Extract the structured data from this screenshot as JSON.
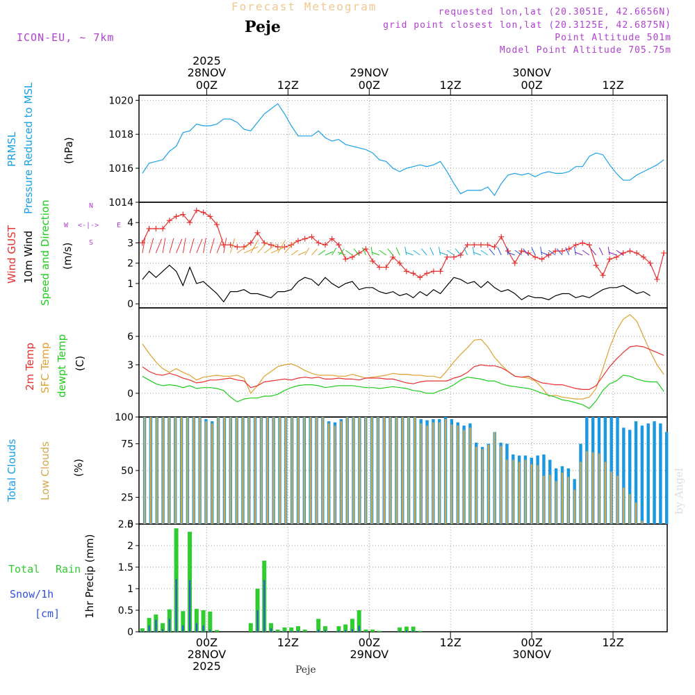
{
  "header": {
    "title": "Forecast Meteogram",
    "station": "Peje",
    "model": "ICON-EU, ~ 7km",
    "requested": "requested lon,lat (20.3051E, 42.6656N)",
    "grid": "grid point closest lon,lat (20.3125E, 42.6875N)",
    "point_alt": "Point Altitude 501m",
    "model_alt": "Model Point Altitude 705.75m"
  },
  "footer": {
    "station": "Peje",
    "watermark": "by Angel"
  },
  "time_axis": {
    "top_year": "2025",
    "top_days": [
      {
        "hour": 0,
        "date": "28NOV",
        "label": "00Z"
      },
      {
        "hour": 24,
        "date": "29NOV",
        "label": "00Z"
      },
      {
        "hour": 48,
        "date": "30NOV",
        "label": "00Z"
      }
    ],
    "top_12z": [
      {
        "hour": 12,
        "label": "12Z"
      },
      {
        "hour": 36,
        "label": "12Z"
      },
      {
        "hour": 60,
        "label": "12Z"
      }
    ],
    "bottom_labels": [
      {
        "hour": 0,
        "lines": [
          "00Z",
          "28NOV",
          "2025"
        ]
      },
      {
        "hour": 12,
        "lines": [
          "12Z"
        ]
      },
      {
        "hour": 24,
        "lines": [
          "00Z",
          "29NOV"
        ]
      },
      {
        "hour": 36,
        "lines": [
          "12Z"
        ]
      },
      {
        "hour": 48,
        "lines": [
          "00Z",
          "30NOV"
        ]
      },
      {
        "hour": 60,
        "lines": [
          "12Z"
        ]
      }
    ]
  },
  "panel_labels": {
    "pressure": [
      "PRMSL",
      "Pressure Reduced to MSL"
    ],
    "pressure_unit": "(hPa)",
    "wind": [
      "Wind GUST",
      "10m Wind",
      "Speed and Direction"
    ],
    "wind_unit": "(m/s)",
    "compass": {
      "n": "N",
      "s": "S",
      "w": "W",
      "e": "E",
      "arrow": "<-|->"
    },
    "temp": [
      "2m Temp",
      "SFC Temp",
      "dewpt Temp"
    ],
    "temp_unit": "(C)",
    "clouds": [
      "Total Clouds",
      "Low Clouds"
    ],
    "clouds_unit": "(%)",
    "precip": {
      "total": "Total",
      "rain": "Rain",
      "snow": "Snow/1h",
      "cm": "[cm]",
      "axis": "1hr Precip (mm)"
    }
  },
  "colors": {
    "pressure": "#1aa0e8",
    "gust": "#e83030",
    "wind": "#000000",
    "t2m": "#e83030",
    "sfc": "#e0a030",
    "dew": "#20cc20",
    "total_clouds": "#1a98e0",
    "low_clouds": "#d4a850",
    "rain": "#30cc30",
    "snow": "#3050e0",
    "grid": "#999999"
  },
  "chart_data": [
    {
      "type": "line",
      "title": "PRMSL Pressure Reduced to MSL",
      "ylabel": "(hPa)",
      "x_start_hour": -9.5,
      "x_step_hours": 1,
      "ylim": [
        1014,
        1020.3
      ],
      "yticks": [
        1014,
        1016,
        1018,
        1020
      ],
      "series": [
        {
          "name": "PRMSL",
          "values": [
            1015.7,
            1016.3,
            1016.4,
            1016.5,
            1017.0,
            1017.3,
            1018.1,
            1018.2,
            1018.6,
            1018.5,
            1018.5,
            1018.6,
            1018.9,
            1018.9,
            1018.7,
            1018.3,
            1018.2,
            1018.7,
            1019.2,
            1019.5,
            1019.8,
            1019.2,
            1018.5,
            1017.9,
            1017.9,
            1017.9,
            1018.2,
            1017.8,
            1017.6,
            1017.7,
            1017.4,
            1017.3,
            1017.2,
            1017.1,
            1016.9,
            1016.5,
            1016.4,
            1016.0,
            1015.8,
            1016.0,
            1016.1,
            1016.2,
            1016.1,
            1016.2,
            1016.4,
            1015.8,
            1015.1,
            1014.5,
            1014.7,
            1014.7,
            1014.7,
            1014.9,
            1014.4,
            1015.1,
            1015.6,
            1015.7,
            1015.6,
            1015.7,
            1015.5,
            1015.7,
            1015.8,
            1015.7,
            1015.7,
            1015.8,
            1016.1,
            1016.1,
            1016.7,
            1016.9,
            1016.8,
            1016.2,
            1015.7,
            1015.3,
            1015.3,
            1015.6,
            1015.8,
            1016.0,
            1016.2,
            1016.5
          ]
        }
      ]
    },
    {
      "type": "line",
      "title": "Wind GUST / 10m Wind Speed and Direction",
      "ylabel": "(m/s)",
      "x_start_hour": -9.5,
      "x_step_hours": 1,
      "ylim": [
        -0.2,
        5.0
      ],
      "yticks": [
        0,
        1,
        2,
        3,
        4
      ],
      "series": [
        {
          "name": "Wind GUST",
          "values": [
            3.0,
            3.7,
            3.7,
            3.7,
            4.1,
            4.3,
            4.4,
            4.0,
            4.6,
            4.5,
            4.3,
            3.9,
            2.9,
            2.9,
            2.8,
            2.8,
            3.0,
            3.5,
            3.0,
            2.9,
            2.8,
            2.8,
            2.9,
            3.1,
            3.2,
            3.3,
            3.0,
            2.9,
            3.2,
            2.9,
            2.2,
            2.3,
            2.5,
            2.7,
            2.1,
            1.8,
            1.8,
            2.3,
            2.0,
            1.6,
            1.5,
            1.3,
            1.5,
            1.6,
            1.6,
            2.3,
            2.3,
            2.4,
            2.9,
            2.9,
            2.9,
            2.9,
            2.8,
            3.3,
            2.6,
            2.0,
            2.6,
            2.5,
            2.3,
            2.2,
            2.4,
            2.6,
            2.6,
            2.7,
            2.9,
            3.0,
            2.9,
            1.9,
            1.4,
            2.2,
            2.3,
            2.5,
            2.6,
            2.5,
            2.3,
            2.0,
            1.2,
            2.5
          ]
        },
        {
          "name": "10m Wind",
          "values": [
            1.2,
            1.6,
            1.3,
            1.6,
            1.9,
            1.6,
            0.9,
            1.8,
            1.0,
            1.1,
            0.8,
            0.5,
            0.1,
            0.6,
            0.6,
            0.7,
            0.5,
            0.5,
            0.4,
            0.3,
            0.6,
            0.6,
            0.7,
            1.1,
            1.3,
            1.2,
            0.9,
            1.3,
            1.0,
            0.8,
            1.0,
            1.1,
            0.7,
            0.8,
            0.8,
            0.6,
            0.5,
            0.6,
            0.4,
            0.5,
            0.3,
            0.6,
            0.4,
            0.7,
            0.5,
            0.9,
            1.3,
            1.2,
            1.0,
            1.1,
            0.8,
            1.1,
            0.8,
            0.6,
            0.7,
            0.5,
            0.2,
            0.4,
            0.3,
            0.3,
            0.2,
            0.4,
            0.5,
            0.5,
            0.3,
            0.4,
            0.3,
            0.5,
            0.7,
            0.8,
            0.8,
            0.9,
            0.7,
            0.5,
            0.6,
            0.4
          ]
        }
      ]
    },
    {
      "type": "line",
      "title": "2m Temp / SFC Temp / dewpt Temp",
      "ylabel": "(C)",
      "x_start_hour": -9.5,
      "x_step_hours": 1,
      "ylim": [
        -2.5,
        9.0
      ],
      "yticks": [
        0,
        3,
        6
      ],
      "series": [
        {
          "name": "2m Temp",
          "values": [
            2.8,
            2.3,
            2.0,
            1.9,
            2.1,
            1.9,
            1.6,
            1.4,
            1.1,
            1.2,
            1.4,
            1.4,
            1.5,
            1.6,
            1.4,
            1.3,
            0.6,
            0.8,
            1.2,
            1.3,
            1.4,
            1.5,
            1.4,
            1.6,
            1.7,
            1.6,
            1.7,
            1.5,
            1.5,
            1.6,
            1.5,
            1.5,
            1.4,
            1.6,
            1.6,
            1.6,
            1.5,
            1.5,
            1.3,
            1.1,
            1.0,
            1.2,
            1.3,
            1.3,
            1.3,
            1.3,
            1.6,
            1.8,
            2.2,
            2.8,
            3.0,
            2.9,
            2.9,
            2.7,
            2.3,
            1.8,
            1.7,
            1.8,
            1.4,
            1.1,
            1.0,
            0.9,
            0.9,
            0.7,
            0.5,
            0.4,
            0.4,
            0.8,
            1.8,
            2.8,
            3.6,
            4.3,
            4.9,
            5.0,
            4.9,
            4.6,
            4.3,
            4.0
          ]
        },
        {
          "name": "SFC Temp",
          "values": [
            5.2,
            4.2,
            3.3,
            2.6,
            2.2,
            2.6,
            2.2,
            1.9,
            1.4,
            1.7,
            1.8,
            1.9,
            1.8,
            1.8,
            1.9,
            1.6,
            0.0,
            0.8,
            1.8,
            2.3,
            2.8,
            3.0,
            3.1,
            2.8,
            2.4,
            2.1,
            1.9,
            1.9,
            1.9,
            1.8,
            1.8,
            2.0,
            1.8,
            1.6,
            1.7,
            1.8,
            1.9,
            2.1,
            2.0,
            2.0,
            1.9,
            1.9,
            1.8,
            1.8,
            1.6,
            2.4,
            3.3,
            4.1,
            4.8,
            5.6,
            5.7,
            4.9,
            3.8,
            3.0,
            2.3,
            1.8,
            1.7,
            1.6,
            1.3,
            0.6,
            -0.3,
            -0.2,
            -0.4,
            -0.5,
            -0.6,
            -0.6,
            -0.4,
            0.5,
            2.6,
            4.8,
            6.6,
            7.8,
            8.3,
            7.6,
            6.0,
            4.4,
            3.0,
            2.0
          ]
        },
        {
          "name": "dewpt Temp",
          "values": [
            1.8,
            1.4,
            1.0,
            0.8,
            0.9,
            0.8,
            0.6,
            0.8,
            0.5,
            0.6,
            0.6,
            0.5,
            0.3,
            -0.4,
            -0.9,
            -0.6,
            -0.5,
            -0.5,
            -0.3,
            -0.3,
            -0.1,
            0.3,
            0.6,
            0.8,
            0.9,
            0.9,
            0.8,
            0.6,
            0.7,
            0.8,
            0.8,
            0.8,
            0.7,
            0.6,
            0.6,
            0.5,
            0.6,
            0.7,
            0.6,
            0.5,
            0.3,
            0.2,
            0.0,
            0.0,
            0.3,
            0.5,
            0.9,
            1.4,
            1.7,
            1.6,
            1.5,
            1.3,
            1.3,
            1.0,
            0.8,
            0.7,
            0.6,
            0.5,
            0.3,
            0.0,
            -0.2,
            -0.4,
            -0.7,
            -0.8,
            -1.0,
            -1.2,
            -1.6,
            -0.8,
            0.3,
            1.0,
            1.3,
            1.9,
            1.8,
            1.5,
            1.3,
            1.2,
            1.2,
            0.2
          ]
        }
      ]
    },
    {
      "type": "bar",
      "title": "Total Clouds / Low Clouds",
      "ylabel": "(%)",
      "x_start_hour": -9.5,
      "x_step_hours": 1,
      "ylim": [
        0,
        100
      ],
      "yticks": [
        0,
        25,
        50,
        75,
        100
      ],
      "series": [
        {
          "name": "Total Clouds",
          "values": [
            100,
            100,
            100,
            100,
            100,
            100,
            100,
            100,
            100,
            100,
            98,
            96,
            100,
            100,
            100,
            100,
            100,
            100,
            100,
            100,
            100,
            100,
            100,
            100,
            100,
            100,
            100,
            100,
            100,
            100,
            96,
            95,
            98,
            100,
            100,
            100,
            100,
            100,
            100,
            100,
            100,
            100,
            100,
            100,
            100,
            98,
            97,
            98,
            98,
            100,
            98,
            95,
            92,
            94,
            76,
            72,
            75,
            86,
            76,
            75,
            65,
            64,
            64,
            62,
            64,
            65,
            60,
            52,
            54,
            52,
            42,
            75,
            100,
            100,
            100,
            100,
            100,
            100,
            90,
            88,
            96,
            92,
            94,
            96,
            94,
            86
          ]
        },
        {
          "name": "Low Clouds",
          "values": [
            100,
            100,
            100,
            100,
            100,
            100,
            100,
            100,
            100,
            100,
            96,
            94,
            100,
            100,
            100,
            100,
            100,
            100,
            100,
            100,
            100,
            100,
            100,
            100,
            100,
            100,
            100,
            100,
            100,
            100,
            94,
            92,
            96,
            100,
            100,
            100,
            100,
            100,
            100,
            100,
            100,
            100,
            100,
            100,
            100,
            94,
            92,
            95,
            95,
            98,
            93,
            92,
            88,
            90,
            72,
            70,
            74,
            86,
            73,
            60,
            60,
            58,
            60,
            56,
            55,
            45,
            46,
            40,
            48,
            44,
            32,
            58,
            68,
            67,
            66,
            58,
            49,
            45,
            34,
            28,
            20,
            3,
            0,
            0,
            0,
            0
          ]
        }
      ]
    },
    {
      "type": "bar",
      "title": "Total Rain / Snow/1h",
      "ylabel": "1hr Precip (mm)",
      "x_start_hour": -9.5,
      "x_step_hours": 1,
      "ylim": [
        0,
        2.5
      ],
      "yticks": [
        0,
        0.5,
        1,
        1.5,
        2,
        2.5
      ],
      "series": [
        {
          "name": "Total Rain",
          "values": [
            0.08,
            0.32,
            0.4,
            0.2,
            0.52,
            2.4,
            0.48,
            2.32,
            0.53,
            0.5,
            0.47,
            0.04,
            0,
            0,
            0,
            0,
            0.2,
            1.0,
            1.65,
            0.2,
            0.05,
            0.1,
            0.1,
            0.13,
            0.05,
            0.0,
            0.3,
            0.13,
            0.0,
            0.13,
            0.17,
            0.3,
            0.5,
            0.05,
            0.05,
            0.02,
            0,
            0,
            0.1,
            0.12,
            0.12,
            0.02,
            0,
            0,
            0,
            0
          ]
        },
        {
          "name": "Snow/1h",
          "values": [
            0.02,
            0.15,
            0.28,
            0.06,
            0.3,
            1.22,
            0.15,
            1.2,
            0.2,
            0.15,
            0.05,
            0.0,
            0,
            0,
            0,
            0,
            0.0,
            0.5,
            1.2,
            0.08,
            0.01,
            0.02,
            0.02,
            0.03,
            0.01,
            0.0,
            0.05,
            0.04,
            0.0,
            0.03,
            0.04,
            0.06,
            0.14,
            0.01,
            0.0,
            0.0,
            0,
            0,
            0.02,
            0.03,
            0.03,
            0.0,
            0,
            0,
            0,
            0
          ]
        }
      ]
    }
  ]
}
